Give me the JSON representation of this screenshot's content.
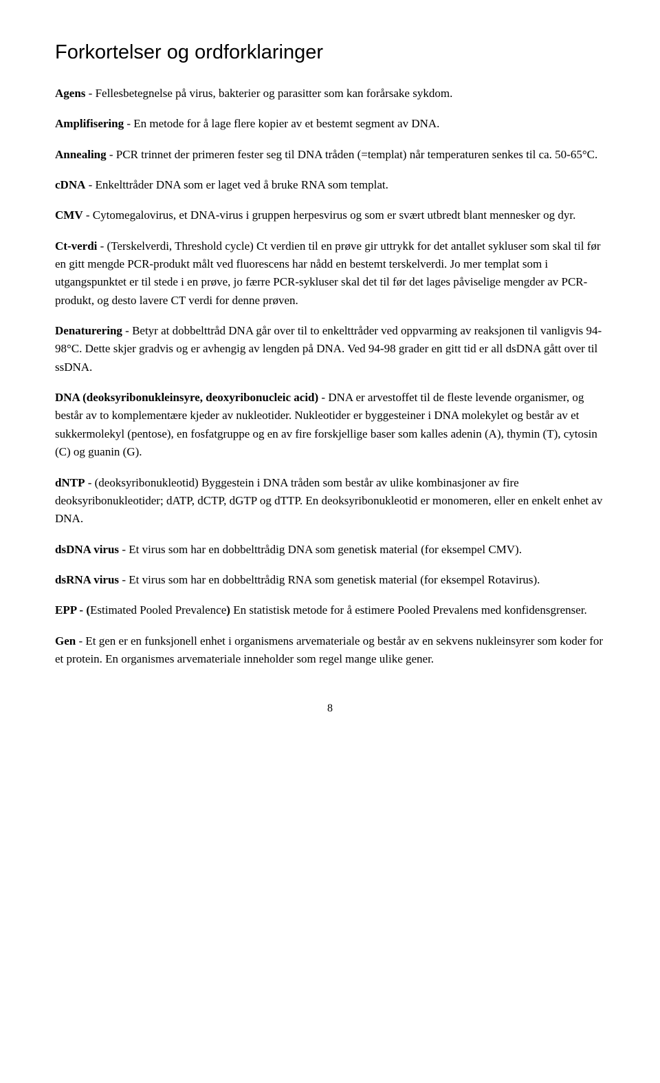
{
  "title": "Forkortelser og ordforklaringer",
  "entries": [
    {
      "term": "Agens",
      "def": " - Fellesbetegnelse på virus, bakterier og parasitter som kan forårsake sykdom."
    },
    {
      "term": "Amplifisering",
      "def": " - En metode for å lage flere kopier av et bestemt segment av DNA."
    },
    {
      "term": "Annealing",
      "def": " - PCR trinnet der primeren fester seg til DNA tråden (=templat) når temperaturen senkes til ca. 50-65°C."
    },
    {
      "term": "cDNA",
      "def": " - Enkelttråder DNA som er laget ved å bruke RNA som templat."
    },
    {
      "term": "CMV",
      "def": " - Cytomegalovirus, et DNA-virus i gruppen herpesvirus og som er svært utbredt blant mennesker og dyr."
    },
    {
      "term": "Ct-verdi",
      "def": " - (Terskelverdi, Threshold cycle) Ct verdien til en prøve gir uttrykk for det antallet sykluser som skal til før en gitt mengde PCR-produkt målt ved fluorescens har nådd en bestemt terskelverdi. Jo mer templat som i utgangspunktet er til stede i en prøve, jo færre PCR-sykluser skal det til før det lages påviselige mengder av PCR-produkt, og desto lavere CT verdi for denne prøven."
    },
    {
      "term": "Denaturering",
      "def": " - Betyr at dobbelttråd DNA går over til to enkelttråder ved oppvarming av reaksjonen til vanligvis 94-98°C. Dette skjer gradvis og er avhengig av lengden på DNA. Ved 94-98 grader en gitt tid er all dsDNA gått over til ssDNA."
    },
    {
      "term": "DNA (deoksyribonukleinsyre, deoxyribonucleic acid)",
      "def": " - DNA er arvestoffet til de fleste levende organismer, og består av to komplementære kjeder av nukleotider. Nukleotider er byggesteiner i DNA molekylet og består av et sukkermolekyl (pentose), en fosfatgruppe og en av fire forskjellige baser som kalles adenin (A), thymin (T), cytosin (C) og guanin (G)."
    },
    {
      "term": "dNTP",
      "def": " - (deoksyribonukleotid) Byggestein i DNA tråden som består av ulike kombinasjoner av fire deoksyribonukleotider; dATP, dCTP, dGTP og dTTP. En deoksyribonukleotid er monomeren, eller en enkelt enhet av DNA."
    },
    {
      "term": "dsDNA virus",
      "def": " - Et virus som har en dobbelttrådig DNA som genetisk material (for eksempel CMV)."
    },
    {
      "term": "dsRNA virus",
      "def": " - Et virus som har en dobbelttrådig RNA som genetisk material (for eksempel Rotavirus)."
    },
    {
      "term": "EPP - (",
      "def": "Estimated Pooled Prevalence) En statistisk metode for å estimere Pooled Prevalens med konfidensgrenser.",
      "boldSuffix": ""
    },
    {
      "term": "Gen",
      "def": " - Et gen er en funksjonell enhet i organismens arvemateriale og består av en sekvens nukleinsyrer som koder for et protein. En organismes arvemateriale inneholder som regel mange ulike gener."
    }
  ],
  "pageNumber": "8",
  "eppParts": {
    "boldPrefix": "EPP - (",
    "plain": "Estimated Pooled Prevalence",
    "boldSuffix": ")",
    "rest": " En statistisk metode for å estimere Pooled Prevalens med konfidensgrenser."
  }
}
